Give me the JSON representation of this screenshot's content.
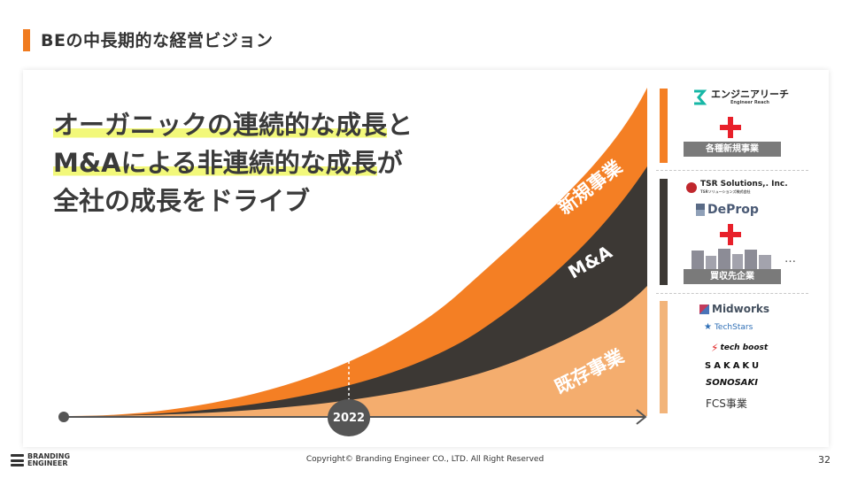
{
  "slide": {
    "title": "BEの中長期的な経営ビジョン",
    "headline": {
      "line1_highlight": "オーガニックの連続的な成長",
      "line1_rest": "と",
      "line2_highlight": "M&Aによる非連続的な成長",
      "line2_rest": "が",
      "line3": "全社の成長をドライブ"
    },
    "year": "2022",
    "bands": {
      "new": "新規事業",
      "ma": "M&A",
      "existing": "既存事業"
    },
    "colors": {
      "accent": "#f07b1f",
      "new_band": "#f47f24",
      "ma_band": "#3c3834",
      "existing_band": "#f4ad6e",
      "existing_bar": "#f2b47a",
      "plus": "#e8202a"
    }
  },
  "right_panel": {
    "new_group": {
      "logo": "エンジニアリーチ",
      "logo_sub": "Engineer Reach",
      "tag": "各種新規事業"
    },
    "ma_group": {
      "logo1": "TSR Solutions,. Inc.",
      "logo1_sub": "TSRソリューションズ株式会社",
      "logo2": "DeProp",
      "ellipsis": "…",
      "tag": "買収先企業"
    },
    "existing_group": {
      "logos": [
        "Midworks",
        "TechStars",
        "tech boost",
        "SAKAKU",
        "SONOSAKI"
      ],
      "label": "FCS事業"
    }
  },
  "footer": {
    "brand_line1": "BRANDING",
    "brand_line2": "ENGINEER",
    "copyright": "Copyright© Branding Engineer CO., LTD. All Right Reserved",
    "page": "32"
  }
}
